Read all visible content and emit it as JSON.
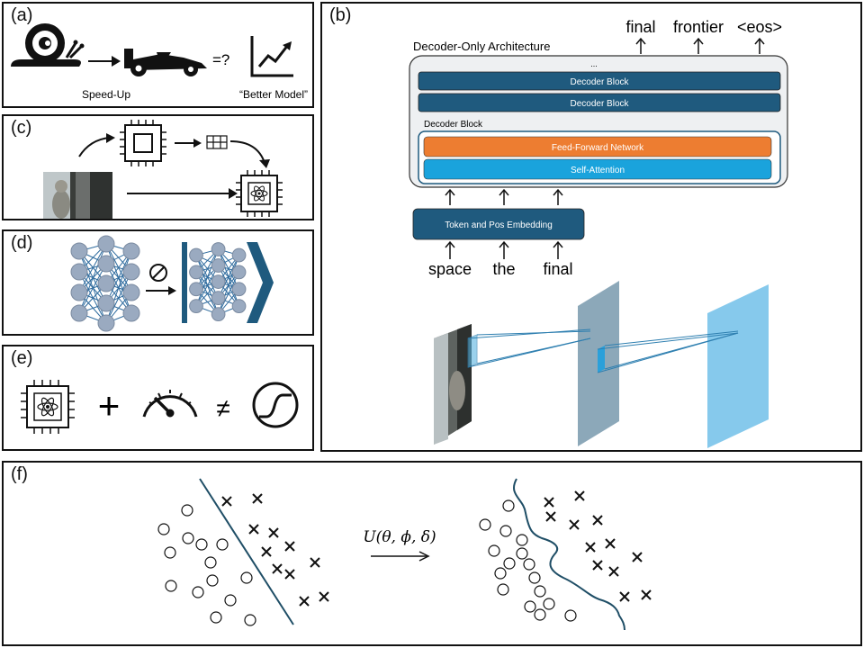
{
  "panels": {
    "a": {
      "label": "(a)",
      "speedup_caption": "Speed-Up",
      "question": "=?",
      "better_caption": "“Better Model”"
    },
    "b": {
      "label": "(b)",
      "arch_title": "Decoder-Only Architecture",
      "ellipsis": "...",
      "outer_blocks": [
        "Decoder Block",
        "Decoder Block"
      ],
      "inner_title": "Decoder Block",
      "ffn": "Feed-Forward Network",
      "attention": "Self-Attention",
      "embedding": "Token and Pos Embedding",
      "input_tokens": [
        "space",
        "the",
        "final"
      ],
      "output_tokens": [
        "final",
        "frontier",
        "<eos>"
      ]
    },
    "c": {
      "label": "(c)"
    },
    "d": {
      "label": "(d)"
    },
    "e": {
      "label": "(e)",
      "plus": "+",
      "neq": "≠"
    },
    "f": {
      "label": "(f)",
      "transform": "U(θ, ϕ, δ)"
    }
  },
  "colors": {
    "decoder_block": "#1f5a7e",
    "ffn": "#ed7d31",
    "attention": "#1aa3dc",
    "embedding": "#1f5a7e",
    "nn_node": "#9aaac0",
    "nn_edge": "#2e6b9e",
    "boundary": "#1f4e66"
  }
}
